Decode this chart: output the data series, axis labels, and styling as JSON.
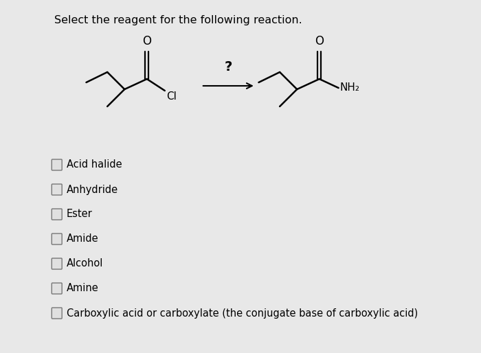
{
  "title": "Select the reagent for the following reaction.",
  "bg_color": "#e8e8e8",
  "mol_bg": "#dce8e8",
  "options": [
    "Acid halide",
    "Anhydride",
    "Ester",
    "Amide",
    "Alcohol",
    "Amine",
    "Carboxylic acid or carboxylate (the conjugate base of carboxylic acid)"
  ]
}
